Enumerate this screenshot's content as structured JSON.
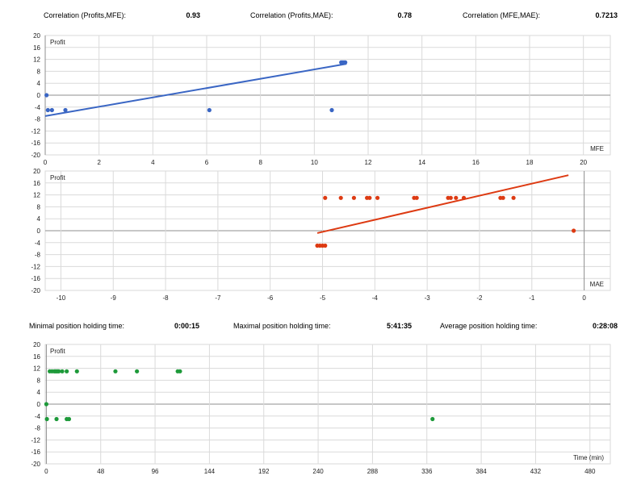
{
  "header_stats": [
    {
      "label": "Correlation (Profits,MFE):",
      "value": "0.93"
    },
    {
      "label": "Correlation (Profits,MAE):",
      "value": "0.78"
    },
    {
      "label": "Correlation (MFE,MAE):",
      "value": "0.7213"
    }
  ],
  "time_stats": [
    {
      "label": "Minimal position holding time:",
      "value": "0:00:15"
    },
    {
      "label": "Maximal position holding time:",
      "value": "5:41:35"
    },
    {
      "label": "Average position holding time:",
      "value": "0:28:08"
    }
  ],
  "colors": {
    "mfe": "#3a66c4",
    "mae": "#dd3a12",
    "time": "#1e9a3a",
    "grid": "#dadada",
    "axis": "#8f8f8f"
  },
  "chart_data": [
    {
      "type": "scatter",
      "ylabel": "Profit",
      "xlabel": "MFE",
      "xlim": [
        0,
        21
      ],
      "ylim": [
        -20,
        20
      ],
      "xticks": [
        0,
        2,
        4,
        6,
        8,
        10,
        12,
        14,
        16,
        18,
        20
      ],
      "yticks": [
        20,
        16,
        12,
        8,
        4,
        0,
        -4,
        -8,
        -12,
        -16,
        -20
      ],
      "grid": true,
      "points": [
        [
          0.05,
          0
        ],
        [
          0.1,
          -5
        ],
        [
          0.25,
          -5
        ],
        [
          0.75,
          -5
        ],
        [
          6.1,
          -5
        ],
        [
          10.65,
          -5
        ],
        [
          11.0,
          11
        ],
        [
          11.05,
          11
        ],
        [
          11.1,
          11
        ],
        [
          11.15,
          11
        ]
      ],
      "trendline": [
        [
          0,
          -7
        ],
        [
          11.2,
          10.5
        ]
      ]
    },
    {
      "type": "scatter",
      "ylabel": "Profit",
      "xlabel": "MAE",
      "xlim": [
        -10.3,
        0.5
      ],
      "ylim": [
        -20,
        20
      ],
      "xticks": [
        -10,
        -9,
        -8,
        -7,
        -6,
        -5,
        -4,
        -3,
        -2,
        -1,
        0
      ],
      "yticks": [
        20,
        16,
        12,
        8,
        4,
        0,
        -4,
        -8,
        -12,
        -16,
        -20
      ],
      "grid": true,
      "points": [
        [
          -5.1,
          -5
        ],
        [
          -5.05,
          -5
        ],
        [
          -5.0,
          -5
        ],
        [
          -4.95,
          -5
        ],
        [
          -4.95,
          11
        ],
        [
          -4.65,
          11
        ],
        [
          -4.4,
          11
        ],
        [
          -4.15,
          11
        ],
        [
          -4.1,
          11
        ],
        [
          -3.95,
          11
        ],
        [
          -3.25,
          11
        ],
        [
          -3.2,
          11
        ],
        [
          -2.6,
          11
        ],
        [
          -2.55,
          11
        ],
        [
          -2.45,
          11
        ],
        [
          -2.3,
          11
        ],
        [
          -1.6,
          11
        ],
        [
          -1.55,
          11
        ],
        [
          -1.35,
          11
        ],
        [
          -0.2,
          0
        ]
      ],
      "trendline": [
        [
          -5.1,
          -0.8
        ],
        [
          -0.3,
          18.6
        ]
      ]
    },
    {
      "type": "scatter",
      "ylabel": "Profit",
      "xlabel": "Time (min)",
      "xlim": [
        -1,
        498
      ],
      "ylim": [
        -20,
        20
      ],
      "xticks": [
        0,
        48,
        96,
        144,
        192,
        240,
        288,
        336,
        384,
        432,
        480
      ],
      "yticks": [
        20,
        16,
        12,
        8,
        4,
        0,
        -4,
        -8,
        -12,
        -16,
        -20
      ],
      "grid": true,
      "points": [
        [
          0,
          0
        ],
        [
          0.5,
          -5
        ],
        [
          3,
          11
        ],
        [
          5,
          11
        ],
        [
          7,
          11
        ],
        [
          8,
          11
        ],
        [
          9,
          11
        ],
        [
          10,
          11
        ],
        [
          11,
          11
        ],
        [
          14,
          11
        ],
        [
          18,
          11
        ],
        [
          9,
          -5
        ],
        [
          18,
          -5
        ],
        [
          20,
          -5
        ],
        [
          27,
          11
        ],
        [
          61,
          11
        ],
        [
          80,
          11
        ],
        [
          116,
          11
        ],
        [
          118,
          11
        ],
        [
          341,
          -5
        ]
      ],
      "trendline": null
    }
  ]
}
